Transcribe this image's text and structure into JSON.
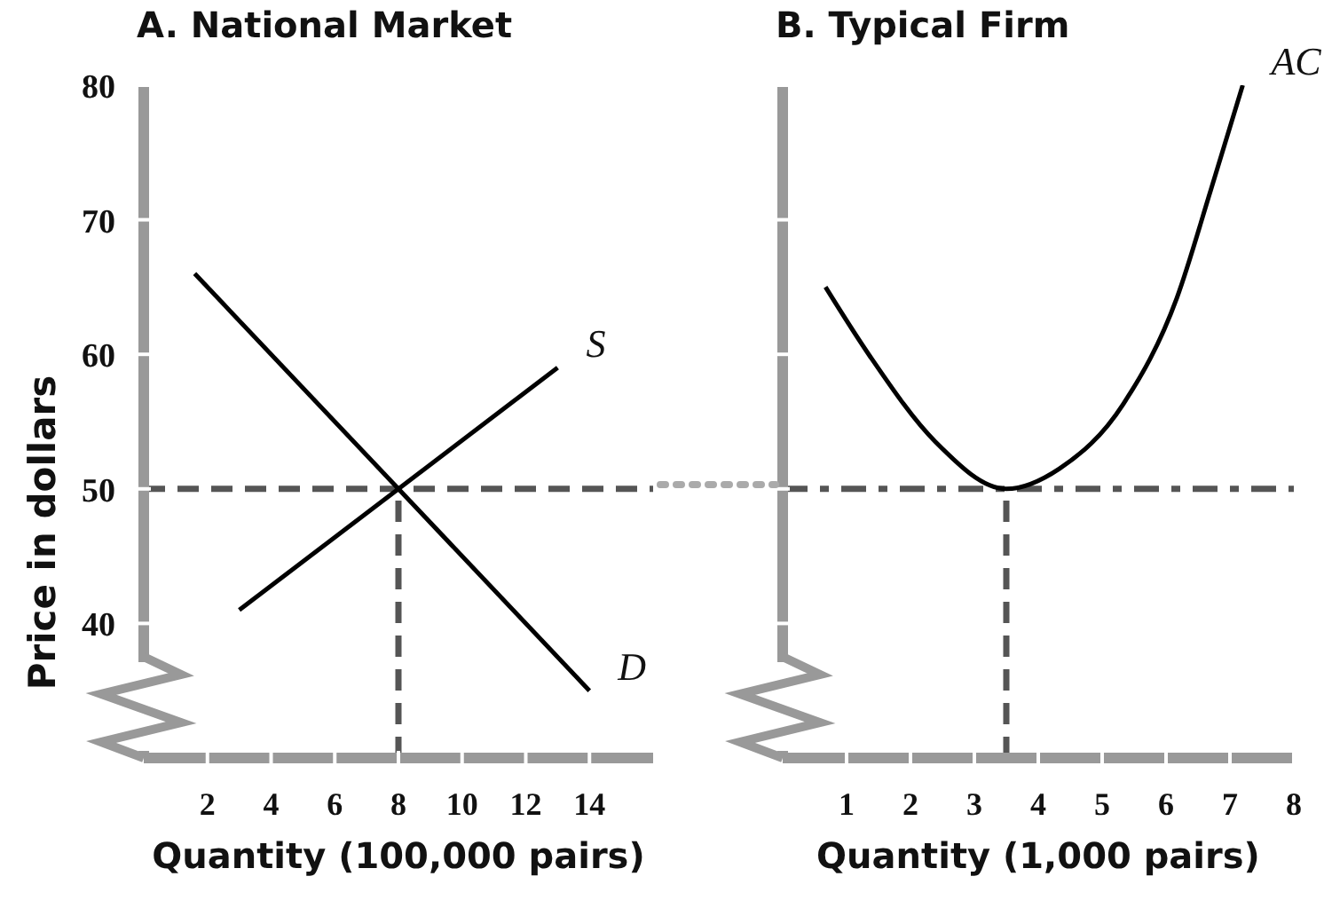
{
  "chart_data": [
    {
      "type": "line",
      "title": "A. National Market",
      "xlabel": "Quantity (100,000 pairs)",
      "ylabel": "Price in dollars",
      "xlim": [
        0,
        16
      ],
      "xticks": [
        2,
        4,
        6,
        8,
        10,
        12,
        14
      ],
      "ylim": [
        30,
        80
      ],
      "yticks": [
        40,
        50,
        60,
        70,
        80
      ],
      "series": [
        {
          "name": "S",
          "color": "#000000",
          "x": [
            3,
            13
          ],
          "values": [
            41,
            59
          ]
        },
        {
          "name": "D",
          "color": "#000000",
          "x": [
            1.6,
            14
          ],
          "values": [
            66,
            35
          ]
        }
      ],
      "ref_lines": [
        {
          "axis": "y",
          "value": 50,
          "color": "#555555",
          "line_style": "dashed"
        },
        {
          "axis": "x",
          "value": 8,
          "color": "#555555",
          "line_style": "dashed"
        }
      ]
    },
    {
      "type": "line",
      "title": "B. Typical Firm",
      "xlabel": "Quantity (1,000 pairs)",
      "xlim": [
        0,
        8
      ],
      "xticks": [
        1,
        2,
        3,
        4,
        5,
        6,
        7,
        8
      ],
      "ylim": [
        30,
        80
      ],
      "yticks": [
        40,
        50,
        60,
        70,
        80
      ],
      "tick_labels": "x",
      "series": [
        {
          "name": "AC",
          "color": "#000000",
          "x": [
            0.67,
            1.36,
            2.39,
            3.5,
            4.33,
            5.33,
            6.17,
            6.7,
            7.2
          ],
          "values": [
            65,
            59.9,
            53.5,
            50,
            51.5,
            56.3,
            64.2,
            72.2,
            80
          ]
        }
      ],
      "ref_lines": [
        {
          "axis": "y",
          "value": 50,
          "color": "#555555",
          "line_style": "dashdot"
        },
        {
          "axis": "x",
          "value": 3.5,
          "color": "#555555",
          "line_style": "dashed"
        }
      ]
    }
  ]
}
